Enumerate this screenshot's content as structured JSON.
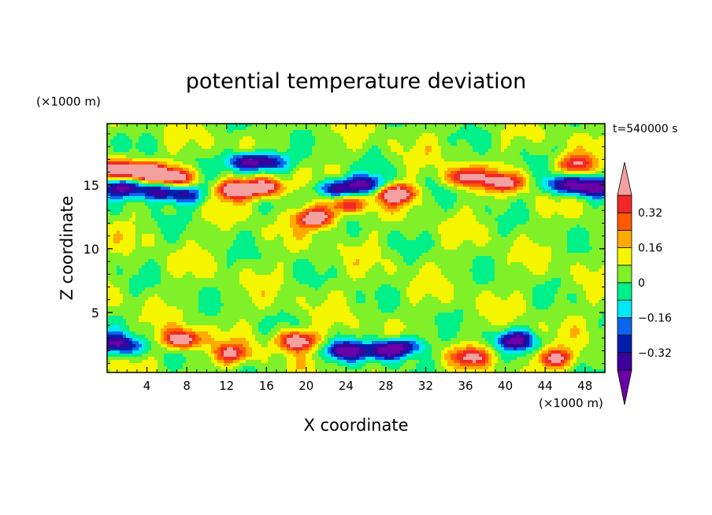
{
  "chart_data": {
    "type": "heatmap",
    "title": "potential temperature deviation",
    "xlabel": "X coordinate",
    "ylabel": "Z coordinate",
    "x_unit": "(×1000 m)",
    "y_unit": "(×1000 m)",
    "time_label": "t=540000 s",
    "xlim": [
      0,
      50
    ],
    "ylim": [
      0.3,
      19.8
    ],
    "x_ticks": [
      4,
      8,
      12,
      16,
      20,
      24,
      28,
      32,
      36,
      40,
      44,
      48
    ],
    "x_tick_labels": [
      "4",
      "8",
      "12",
      "16",
      "20",
      "24",
      "28",
      "32",
      "36",
      "40",
      "44",
      "48"
    ],
    "y_ticks": [
      5,
      10,
      15
    ],
    "y_tick_labels": [
      "5",
      "10",
      "15"
    ],
    "colorbar": {
      "levels": [
        -0.4,
        -0.32,
        -0.24,
        -0.16,
        -0.08,
        0,
        0.08,
        0.16,
        0.24,
        0.32,
        0.4
      ],
      "labels": [
        "0.32",
        "0.16",
        "0",
        "−0.16",
        "−0.32"
      ],
      "label_values": [
        0.32,
        0.16,
        0,
        -0.16,
        -0.32
      ],
      "colors": [
        "#6a00a8",
        "#3d009e",
        "#001fa8",
        "#0a64f0",
        "#00e8f5",
        "#00f08a",
        "#80f028",
        "#f5f500",
        "#ffaa00",
        "#ff5a00",
        "#f02828",
        "#f5a0a0"
      ]
    },
    "features": [
      {
        "x": 1,
        "z": 16.2,
        "value": 0.45
      },
      {
        "x": 4,
        "z": 16.0,
        "value": 0.45
      },
      {
        "x": 7,
        "z": 15.6,
        "value": 0.4
      },
      {
        "x": 1.5,
        "z": 14.8,
        "value": -0.42
      },
      {
        "x": 5,
        "z": 14.5,
        "value": -0.42
      },
      {
        "x": 8,
        "z": 14.2,
        "value": -0.3
      },
      {
        "x": 14,
        "z": 16.8,
        "value": -0.42
      },
      {
        "x": 16.5,
        "z": 16.8,
        "value": -0.3
      },
      {
        "x": 13,
        "z": 14.6,
        "value": 0.45
      },
      {
        "x": 16,
        "z": 14.8,
        "value": 0.42
      },
      {
        "x": 23,
        "z": 14.7,
        "value": -0.42
      },
      {
        "x": 26,
        "z": 15.0,
        "value": -0.38
      },
      {
        "x": 21,
        "z": 12.4,
        "value": 0.45
      },
      {
        "x": 24,
        "z": 13.5,
        "value": 0.32
      },
      {
        "x": 29,
        "z": 14.3,
        "value": 0.45
      },
      {
        "x": 36,
        "z": 15.6,
        "value": 0.38
      },
      {
        "x": 40,
        "z": 15.2,
        "value": 0.34
      },
      {
        "x": 46,
        "z": 15.0,
        "value": -0.42
      },
      {
        "x": 49,
        "z": 14.8,
        "value": -0.42
      },
      {
        "x": 47,
        "z": 16.6,
        "value": 0.32
      },
      {
        "x": 7.5,
        "z": 2.9,
        "value": 0.45
      },
      {
        "x": 12.5,
        "z": 1.8,
        "value": 0.3
      },
      {
        "x": 19,
        "z": 2.8,
        "value": 0.45
      },
      {
        "x": 24,
        "z": 2.0,
        "value": -0.42
      },
      {
        "x": 28,
        "z": 2.0,
        "value": -0.42
      },
      {
        "x": 30,
        "z": 2.4,
        "value": -0.32
      },
      {
        "x": 36.5,
        "z": 1.5,
        "value": 0.3
      },
      {
        "x": 41,
        "z": 2.8,
        "value": -0.4
      },
      {
        "x": 45,
        "z": 1.4,
        "value": 0.35
      },
      {
        "x": 0.5,
        "z": 2.6,
        "value": -0.3
      },
      {
        "x": 2.5,
        "z": 2.3,
        "value": -0.2
      }
    ]
  }
}
